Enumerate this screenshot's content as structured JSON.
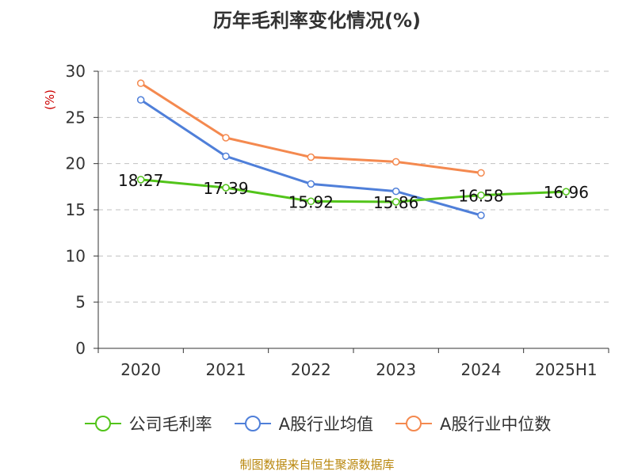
{
  "title": "历年毛利率变化情况(%)",
  "source": "制图数据来自恒生聚源数据库",
  "colors": {
    "company": "#52c41a",
    "industry_avg": "#4f7fd9",
    "industry_median": "#f4894f",
    "axis": "#333333",
    "grid": "#c0c0c0",
    "ylabel": "#cc0000"
  },
  "chart_data": {
    "type": "line",
    "title": "历年毛利率变化情况(%)",
    "xlabel": "",
    "ylabel": "(%)",
    "categories": [
      "2020",
      "2021",
      "2022",
      "2023",
      "2024",
      "2025H1"
    ],
    "ylim": [
      0,
      30
    ],
    "yticks": [
      "0",
      "5",
      "10",
      "15",
      "20",
      "25",
      "30"
    ],
    "grid": true,
    "legend_position": "bottom",
    "series": [
      {
        "name": "公司毛利率",
        "color_key": "company",
        "values": [
          18.27,
          17.39,
          15.92,
          15.86,
          16.58,
          16.96
        ],
        "labels": [
          "18.27",
          "17.39",
          "15.92",
          "15.86",
          "16.58",
          "16.96"
        ]
      },
      {
        "name": "A股行业均值",
        "color_key": "industry_avg",
        "values": [
          26.9,
          20.8,
          17.8,
          17.0,
          14.4,
          null
        ]
      },
      {
        "name": "A股行业中位数",
        "color_key": "industry_median",
        "values": [
          28.7,
          22.8,
          20.7,
          20.2,
          19.0,
          null
        ]
      }
    ]
  }
}
